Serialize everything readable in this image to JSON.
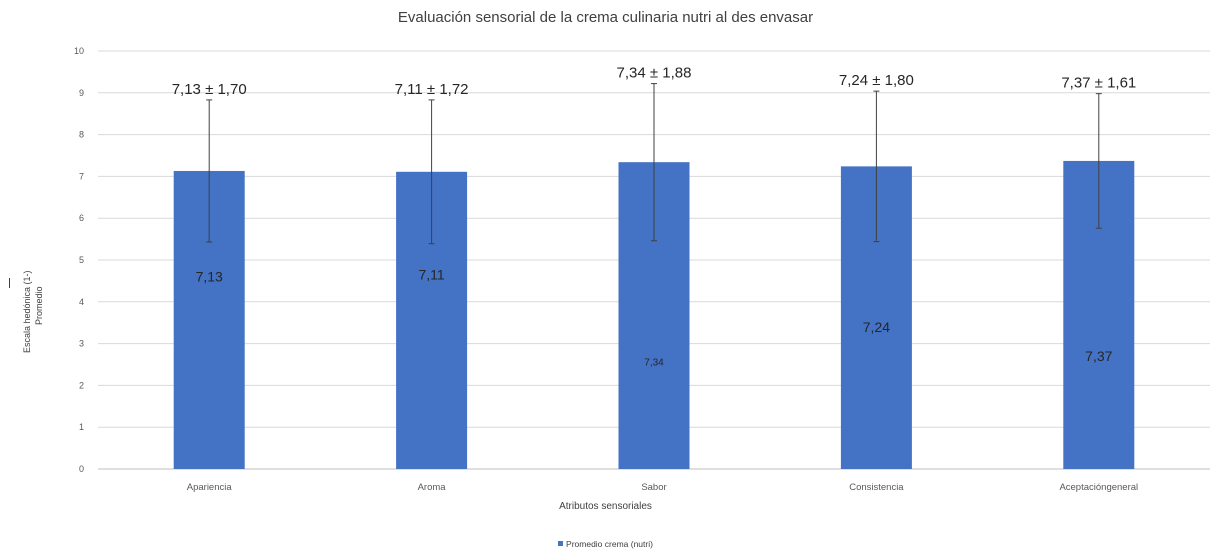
{
  "chart_data": {
    "type": "bar",
    "title": "Evaluación sensorial de la crema culinaria nutri al des envasar",
    "xlabel": "Atributos sensoriales",
    "ylabel_lines": [
      "Escala  hedónica (1-)",
      "Promedio"
    ],
    "categories": [
      "Apariencia",
      "Aroma",
      "Sabor",
      "Consistencia",
      "Aceptacióngeneral"
    ],
    "series": [
      {
        "name": "Promedio crema (nutri)",
        "values": [
          7.13,
          7.11,
          7.34,
          7.24,
          7.37
        ],
        "error": [
          1.7,
          1.72,
          1.88,
          1.8,
          1.61
        ],
        "value_labels": [
          "7,13",
          "7,11",
          "7,34",
          "7,24",
          "7,37"
        ],
        "top_labels": [
          "7,13 ± 1,70",
          "7,11 ± 1,72",
          "7,34 ± 1,88",
          "7,24 ± 1,80",
          "7,37 ± 1,61"
        ],
        "color": "#4472C4"
      }
    ],
    "ylim": [
      0,
      10
    ],
    "yticks": [
      "0",
      "1",
      "2",
      "3",
      "4",
      "5",
      "6",
      "7",
      "8",
      "9",
      "10"
    ],
    "grid": true,
    "legend": "bottom",
    "error_bar_color": "#404040",
    "grid_color": "#d9d9d9"
  }
}
